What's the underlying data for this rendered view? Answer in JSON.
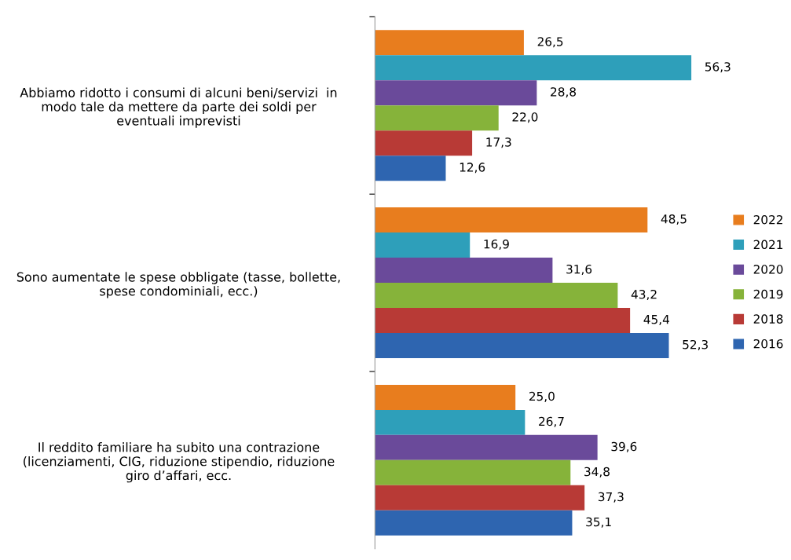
{
  "chart_data": {
    "type": "bar",
    "orientation": "horizontal",
    "categories": [
      "Abbiamo ridotto i consumi di alcuni beni/servizi  in\nmodo tale da mettere da parte dei soldi per\neventuali imprevisti",
      "Sono aumentate le spese obbligate (tasse, bollette,\nspese condominiali, ecc.)",
      "Il reddito familiare ha subito una contrazione\n(licenziamenti, CIG, riduzione stipendio, riduzione\ngiro d’affari, ecc."
    ],
    "series": [
      {
        "name": "2022",
        "color": "#e87d1e",
        "values": [
          26.5,
          48.5,
          25.0
        ],
        "value_labels": [
          "26,5",
          "48,5",
          "25,0"
        ]
      },
      {
        "name": "2021",
        "color": "#2e9fba",
        "values": [
          56.3,
          16.9,
          26.7
        ],
        "value_labels": [
          "56,3",
          "16,9",
          "26,7"
        ]
      },
      {
        "name": "2020",
        "color": "#6a4a9a",
        "values": [
          28.8,
          31.6,
          39.6
        ],
        "value_labels": [
          "28,8",
          "31,6",
          "39,6"
        ]
      },
      {
        "name": "2019",
        "color": "#86b33a",
        "values": [
          22.0,
          43.2,
          34.8
        ],
        "value_labels": [
          "22,0",
          "43,2",
          "34,8"
        ]
      },
      {
        "name": "2018",
        "color": "#b83a36",
        "values": [
          17.3,
          45.4,
          37.3
        ],
        "value_labels": [
          "17,3",
          "45,4",
          "37,3"
        ]
      },
      {
        "name": "2016",
        "color": "#2e65b0",
        "values": [
          12.6,
          52.3,
          35.1
        ],
        "value_labels": [
          "12,6",
          "52,3",
          "35,1"
        ]
      }
    ],
    "tick_labels": "y",
    "legend": "right",
    "grid": false
  }
}
